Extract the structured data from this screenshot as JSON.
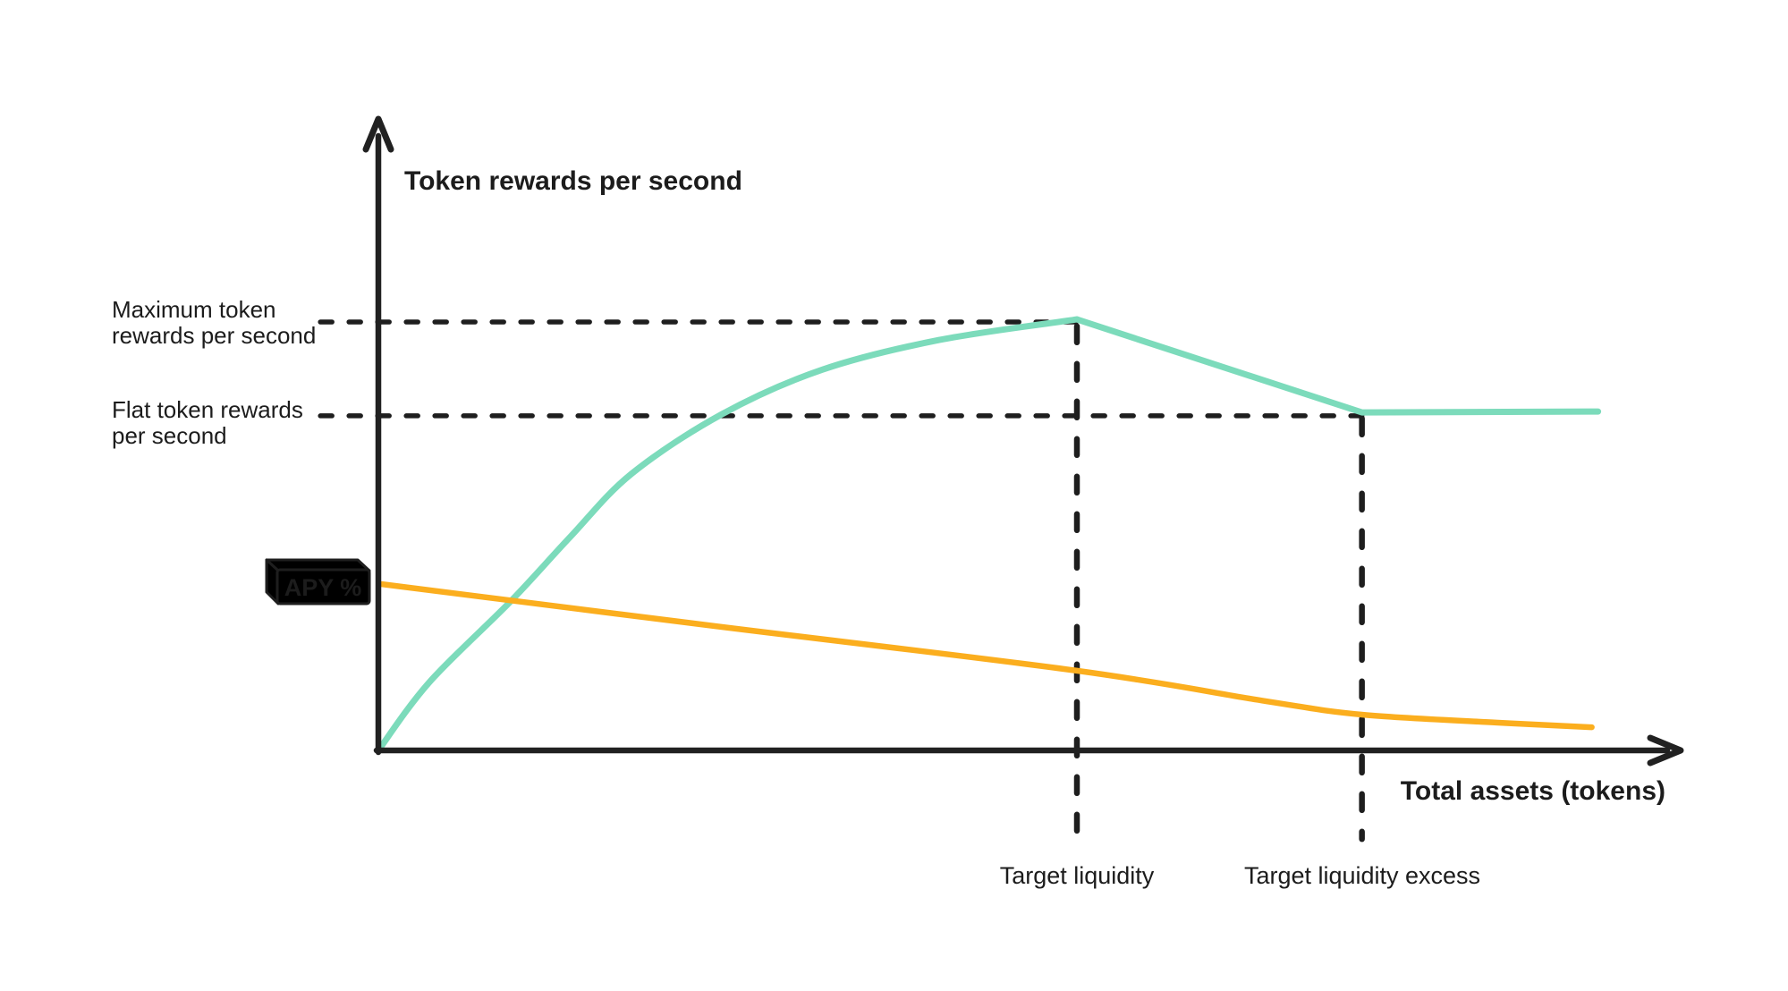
{
  "labels": {
    "apy_badge": "APY %"
  },
  "colors": {
    "rewards_curve": "#7CDBBB",
    "apy_curve": "#FBAE1E",
    "apy_badge_fill": "#F6A71E",
    "badge_top_face": "#F7F7F7",
    "badge_left_face": "#D9D9D9",
    "ink": "#1E1E1E"
  },
  "chart_data": {
    "type": "line",
    "title": "",
    "xlabel": "Total assets (tokens)",
    "ylabel": "Token rewards per second",
    "x_units": "relative (1.0 = Target liquidity)",
    "y_units": "relative (1.0 = Maximum token rewards per second)",
    "x_range": [
      0,
      1.87
    ],
    "y_range": [
      0,
      1.44
    ],
    "grid": false,
    "legend": "none",
    "key_x": {
      "target_liquidity": 1.0,
      "target_liquidity_excess": 1.408
    },
    "key_y": {
      "maximum_token_rewards_per_second": 1.0,
      "flat_token_rewards_per_second": 0.785
    },
    "series": [
      {
        "name": "Token rewards per second",
        "color": "#7CDBBB",
        "segments": [
          {
            "smooth": true,
            "points": [
              [
                0,
                0
              ],
              [
                0.073,
                0.159
              ],
              [
                0.19,
                0.349
              ],
              [
                0.275,
                0.499
              ],
              [
                0.362,
                0.645
              ],
              [
                0.492,
                0.785
              ],
              [
                0.636,
                0.889
              ],
              [
                0.803,
                0.958
              ],
              [
                1.0,
                1.006
              ]
            ]
          },
          {
            "smooth": false,
            "points": [
              [
                1.0,
                1.006
              ],
              [
                1.408,
                0.789
              ],
              [
                1.746,
                0.791
              ]
            ]
          }
        ]
      },
      {
        "name": "APY %",
        "color": "#FBAE1E",
        "segments": [
          {
            "smooth": true,
            "points": [
              [
                0.005,
                0.388
              ],
              [
                0.483,
                0.29
              ],
              [
                1.0,
                0.186
              ],
              [
                1.27,
                0.115
              ],
              [
                1.408,
                0.0835
              ],
              [
                1.6,
                0.065
              ],
              [
                1.737,
                0.054
              ]
            ]
          }
        ]
      }
    ],
    "guides": [
      {
        "id": "max-level",
        "orient": "h",
        "y": 1.0,
        "x1": -0.083,
        "x2": 1.0,
        "label": [
          "Maximum token",
          "rewards per second"
        ]
      },
      {
        "id": "flat-level",
        "orient": "h",
        "y": 0.781,
        "x1": -0.083,
        "x2": 1.408,
        "label": [
          "Flat token rewards",
          "per second"
        ]
      },
      {
        "id": "target-liquidity",
        "orient": "v",
        "x": 1.0,
        "y1": 0.99,
        "y2": -0.207,
        "label": "Target liquidity"
      },
      {
        "id": "target-liquidity-excess",
        "orient": "v",
        "x": 1.408,
        "y1": 0.775,
        "y2": -0.207,
        "label": "Target liquidity excess"
      }
    ]
  }
}
